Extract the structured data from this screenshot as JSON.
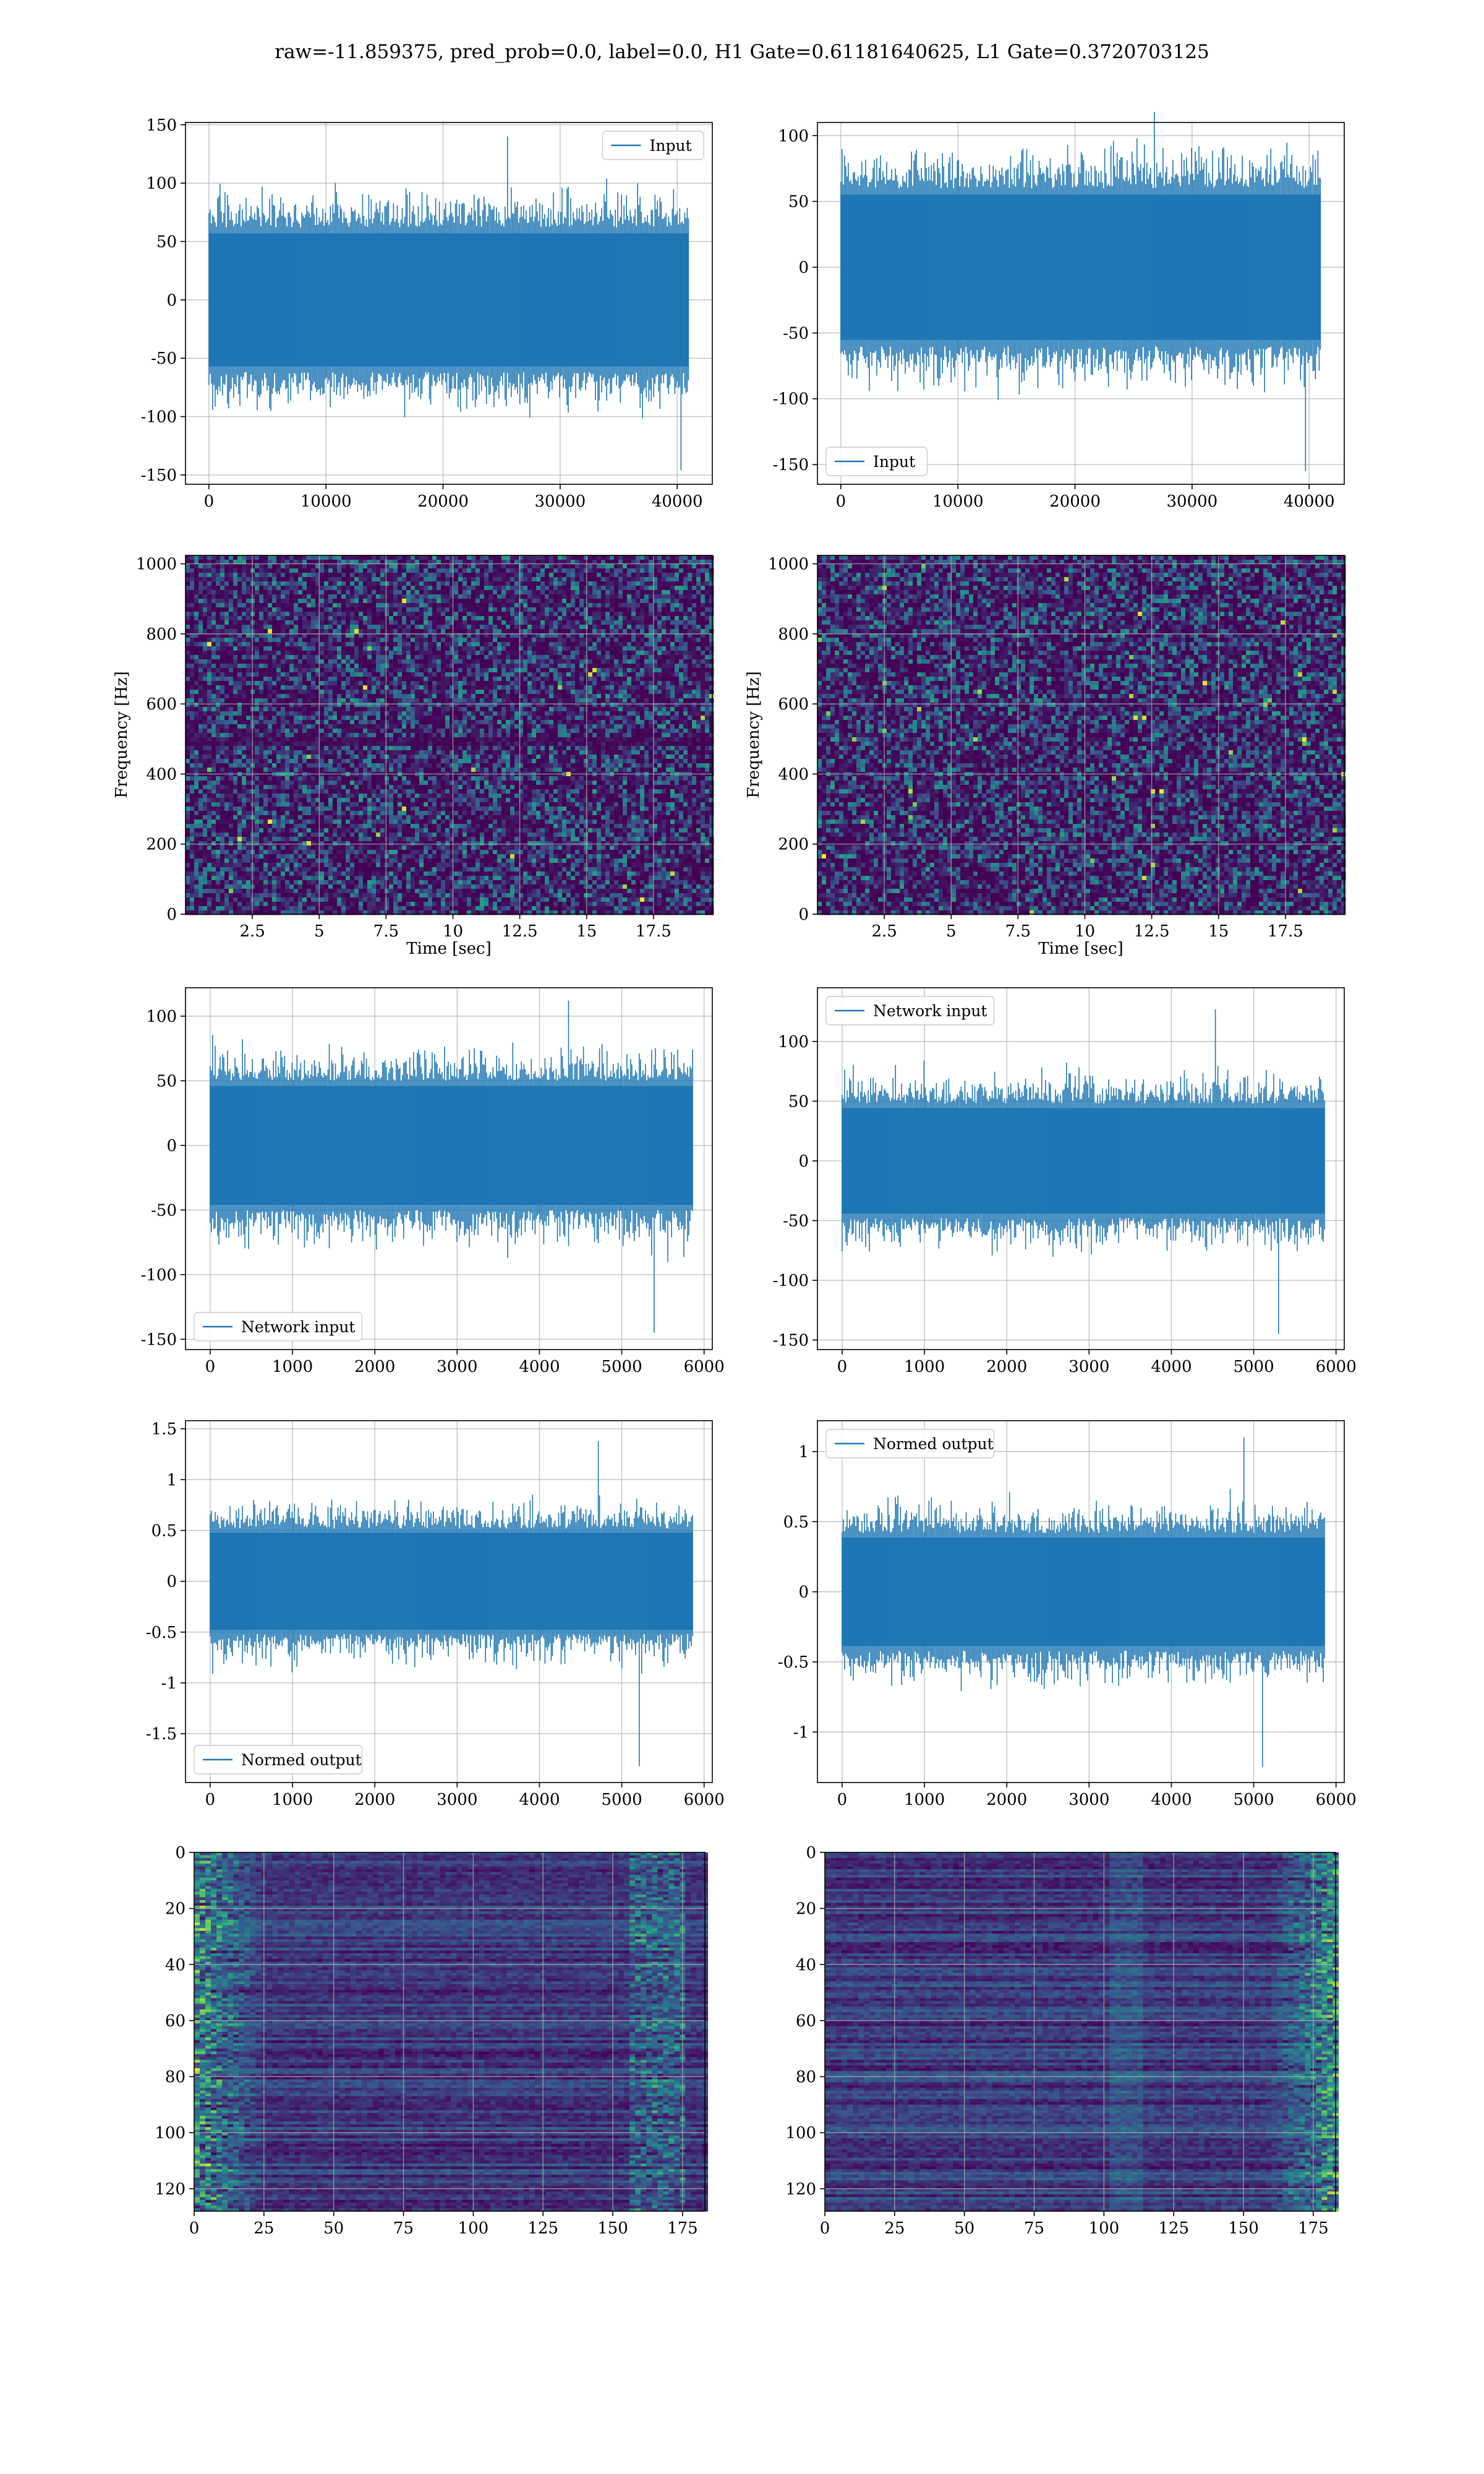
{
  "figure_title": "raw=-11.859375, pred_prob=0.0, label=0.0, H1 Gate=0.61181640625, L1 Gate=0.3720703125",
  "colors": {
    "series": "#1f77b4",
    "grid": "#b0b0b0",
    "heat_low": "#440154",
    "heat_mid": "#21918c",
    "heat_high": "#fde725"
  },
  "chart_data": [
    {
      "id": "h1-input",
      "type": "line",
      "legend": "Input",
      "legend_loc": "upper right",
      "xlim": [
        -2000,
        43000
      ],
      "ylim": [
        -158,
        152
      ],
      "xticks": [
        0,
        10000,
        20000,
        30000,
        40000
      ],
      "yticks": [
        -150,
        -100,
        -50,
        0,
        50,
        100,
        150
      ],
      "n_points": 40960,
      "x_max": 40960,
      "core_amp": 62,
      "outlier_max": 140,
      "outlier_min": -146,
      "grid": true
    },
    {
      "id": "l1-input",
      "type": "line",
      "legend": "Input",
      "legend_loc": "lower left",
      "xlim": [
        -2000,
        43000
      ],
      "ylim": [
        -165,
        110
      ],
      "xticks": [
        0,
        10000,
        20000,
        30000,
        40000
      ],
      "yticks": [
        -150,
        -100,
        -50,
        0,
        50,
        100
      ],
      "n_points": 40960,
      "x_max": 40960,
      "core_amp": 60,
      "outlier_max": 118,
      "outlier_min": -155,
      "grid": true
    },
    {
      "id": "h1-spectrogram",
      "type": "heatmap",
      "xlabel": "Time [sec]",
      "ylabel": "Frequency [Hz]",
      "xlim": [
        0,
        19.7
      ],
      "ylim": [
        0,
        1024
      ],
      "xticks": [
        2.5,
        5.0,
        7.5,
        10.0,
        12.5,
        15.0,
        17.5
      ],
      "yticks": [
        0,
        200,
        400,
        600,
        800,
        1000
      ],
      "colormap": "viridis",
      "dark_band_hz": 500,
      "grid": true
    },
    {
      "id": "l1-spectrogram",
      "type": "heatmap",
      "xlabel": "Time [sec]",
      "ylabel": "Frequency [Hz]",
      "xlim": [
        0,
        19.7
      ],
      "ylim": [
        0,
        1024
      ],
      "xticks": [
        2.5,
        5.0,
        7.5,
        10.0,
        12.5,
        15.0,
        17.5
      ],
      "yticks": [
        0,
        200,
        400,
        600,
        800,
        1000
      ],
      "colormap": "viridis",
      "grid": true
    },
    {
      "id": "h1-network-input",
      "type": "line",
      "legend": "Network input",
      "legend_loc": "lower left",
      "xlim": [
        -300,
        6100
      ],
      "ylim": [
        -158,
        122
      ],
      "xticks": [
        0,
        1000,
        2000,
        3000,
        4000,
        5000,
        6000
      ],
      "yticks": [
        -150,
        -100,
        -50,
        0,
        50,
        100
      ],
      "n_points": 5860,
      "x_max": 5860,
      "core_amp": 50,
      "outlier_max": 112,
      "outlier_min": -145,
      "grid": true
    },
    {
      "id": "l1-network-input",
      "type": "line",
      "legend": "Network input",
      "legend_loc": "upper left",
      "xlim": [
        -300,
        6100
      ],
      "ylim": [
        -158,
        145
      ],
      "xticks": [
        0,
        1000,
        2000,
        3000,
        4000,
        5000,
        6000
      ],
      "yticks": [
        -150,
        -100,
        -50,
        0,
        50,
        100
      ],
      "n_points": 5860,
      "x_max": 5860,
      "core_amp": 48,
      "outlier_max": 127,
      "outlier_min": -145,
      "grid": true
    },
    {
      "id": "h1-normed-output",
      "type": "line",
      "legend": "Normed output",
      "legend_loc": "lower left",
      "xlim": [
        -300,
        6100
      ],
      "ylim": [
        -1.98,
        1.58
      ],
      "xticks": [
        0,
        1000,
        2000,
        3000,
        4000,
        5000,
        6000
      ],
      "yticks": [
        -1.5,
        -1.0,
        -0.5,
        0.0,
        0.5,
        1.0,
        1.5
      ],
      "n_points": 5860,
      "x_max": 5860,
      "core_amp": 0.52,
      "outlier_max": 1.38,
      "outlier_min": -1.82,
      "grid": true
    },
    {
      "id": "l1-normed-output",
      "type": "line",
      "legend": "Normed output",
      "legend_loc": "upper left",
      "xlim": [
        -300,
        6100
      ],
      "ylim": [
        -1.36,
        1.22
      ],
      "xticks": [
        0,
        1000,
        2000,
        3000,
        4000,
        5000,
        6000
      ],
      "yticks": [
        -1.0,
        -0.5,
        0.0,
        0.5,
        1.0
      ],
      "n_points": 5860,
      "x_max": 5860,
      "core_amp": 0.42,
      "outlier_max": 1.1,
      "outlier_min": -1.25,
      "grid": true
    },
    {
      "id": "h1-features",
      "type": "heatmap",
      "colormap": "viridis",
      "xlim": [
        0,
        183
      ],
      "ylim": [
        128,
        0
      ],
      "xticks": [
        0,
        25,
        50,
        75,
        100,
        125,
        150,
        175
      ],
      "yticks": [
        0,
        20,
        40,
        60,
        80,
        100,
        120
      ],
      "rows": 128,
      "cols": 183,
      "bright_edge": "left",
      "grid": true
    },
    {
      "id": "l1-features",
      "type": "heatmap",
      "colormap": "viridis",
      "xlim": [
        0,
        183
      ],
      "ylim": [
        128,
        0
      ],
      "xticks": [
        0,
        25,
        50,
        75,
        100,
        125,
        150,
        175
      ],
      "yticks": [
        0,
        20,
        40,
        60,
        80,
        100,
        120
      ],
      "rows": 128,
      "cols": 183,
      "bright_edge": "right",
      "grid": true
    }
  ]
}
